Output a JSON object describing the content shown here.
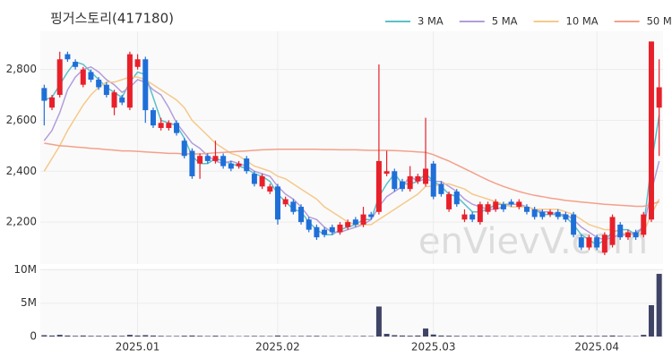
{
  "chart_data": {
    "type": "candlestick",
    "title": "핑거스토리(417180)",
    "watermark": "enVievV.com",
    "up_color": "#e8202a",
    "down_color": "#1f6fd8",
    "grid": true,
    "categories": [
      null,
      null,
      null,
      null,
      null,
      null,
      null,
      null,
      null,
      null,
      null,
      null,
      "2025.01",
      null,
      null,
      null,
      null,
      null,
      null,
      null,
      null,
      null,
      null,
      null,
      null,
      null,
      null,
      null,
      null,
      null,
      "2025.02",
      null,
      null,
      null,
      null,
      null,
      null,
      null,
      null,
      null,
      null,
      null,
      null,
      null,
      null,
      null,
      null,
      null,
      null,
      null,
      "2025.03",
      null,
      null,
      null,
      null,
      null,
      null,
      null,
      null,
      null,
      null,
      null,
      null,
      null,
      null,
      null,
      null,
      null,
      null,
      null,
      null,
      "2025.04",
      null,
      null,
      null,
      null,
      null,
      null,
      null,
      null
    ],
    "open": [
      2727,
      2650,
      2700,
      2860,
      2830,
      2740,
      2790,
      2760,
      2740,
      2650,
      2690,
      2650,
      2810,
      2840,
      2640,
      2570,
      2570,
      2590,
      2520,
      2480,
      2430,
      2460,
      2440,
      2460,
      2430,
      2420,
      2450,
      2390,
      2340,
      2320,
      2340,
      2270,
      2280,
      2260,
      2210,
      2180,
      2170,
      2180,
      2160,
      2180,
      2210,
      2190,
      2230,
      2240,
      2390,
      2400,
      2360,
      2330,
      2360,
      2350,
      2430,
      2350,
      2250,
      2320,
      2210,
      2230,
      2200,
      2240,
      2250,
      2270,
      2280,
      2260,
      2260,
      2250,
      2240,
      2230,
      2240,
      2230,
      2230,
      2140,
      2100,
      2140,
      2080,
      2110,
      2190,
      2140,
      2160,
      2150,
      2210,
      2650
    ],
    "high": [
      2740,
      2700,
      2870,
      2870,
      2840,
      2810,
      2800,
      2770,
      2750,
      2720,
      2700,
      2870,
      2860,
      2850,
      2650,
      2610,
      2600,
      2600,
      2530,
      2490,
      2470,
      2470,
      2520,
      2470,
      2440,
      2440,
      2460,
      2400,
      2390,
      2350,
      2350,
      2300,
      2290,
      2270,
      2220,
      2190,
      2180,
      2190,
      2200,
      2210,
      2220,
      2260,
      2240,
      2820,
      2480,
      2410,
      2370,
      2420,
      2390,
      2610,
      2440,
      2360,
      2320,
      2330,
      2250,
      2240,
      2280,
      2280,
      2290,
      2280,
      2290,
      2290,
      2270,
      2260,
      2250,
      2250,
      2250,
      2240,
      2240,
      2150,
      2150,
      2150,
      2160,
      2230,
      2200,
      2170,
      2170,
      2240,
      2910,
      2840
    ],
    "low": [
      2580,
      2640,
      2690,
      2830,
      2800,
      2730,
      2750,
      2720,
      2690,
      2620,
      2660,
      2640,
      2800,
      2590,
      2570,
      2560,
      2560,
      2540,
      2450,
      2370,
      2370,
      2430,
      2430,
      2410,
      2400,
      2410,
      2390,
      2340,
      2330,
      2310,
      2190,
      2260,
      2230,
      2190,
      2160,
      2130,
      2140,
      2150,
      2150,
      2170,
      2180,
      2180,
      2210,
      2230,
      2380,
      2320,
      2320,
      2320,
      2350,
      2340,
      2290,
      2300,
      2240,
      2260,
      2200,
      2200,
      2190,
      2230,
      2240,
      2240,
      2260,
      2250,
      2230,
      2210,
      2210,
      2220,
      2210,
      2200,
      2140,
      2090,
      2090,
      2090,
      2070,
      2100,
      2130,
      2130,
      2130,
      2140,
      2200,
      2460
    ],
    "close": [
      2677,
      2690,
      2840,
      2840,
      2810,
      2800,
      2760,
      2730,
      2700,
      2710,
      2670,
      2860,
      2840,
      2640,
      2580,
      2590,
      2590,
      2550,
      2460,
      2380,
      2460,
      2440,
      2460,
      2420,
      2410,
      2430,
      2400,
      2350,
      2380,
      2340,
      2210,
      2290,
      2240,
      2200,
      2170,
      2140,
      2150,
      2160,
      2190,
      2200,
      2190,
      2230,
      2220,
      2440,
      2400,
      2330,
      2330,
      2380,
      2380,
      2410,
      2300,
      2310,
      2310,
      2270,
      2230,
      2210,
      2270,
      2270,
      2280,
      2250,
      2270,
      2280,
      2240,
      2220,
      2220,
      2240,
      2220,
      2210,
      2150,
      2100,
      2140,
      2100,
      2150,
      2220,
      2140,
      2160,
      2140,
      2230,
      2910,
      2730
    ],
    "ylim": [
      2035,
      2950
    ],
    "yticks": [
      {
        "value": 2200,
        "label": "2,200"
      },
      {
        "value": 2400,
        "label": "2,400"
      },
      {
        "value": 2600,
        "label": "2,600"
      },
      {
        "value": 2800,
        "label": "2,800"
      }
    ],
    "series": [
      {
        "name": "3 MA",
        "color": "#5bc0c8",
        "values": [
          2680,
          2690,
          2740,
          2790,
          2830,
          2820,
          2790,
          2760,
          2730,
          2710,
          2690,
          2750,
          2790,
          2780,
          2690,
          2600,
          2590,
          2580,
          2530,
          2460,
          2430,
          2430,
          2450,
          2440,
          2430,
          2420,
          2410,
          2390,
          2380,
          2360,
          2310,
          2280,
          2250,
          2240,
          2200,
          2170,
          2150,
          2150,
          2170,
          2180,
          2190,
          2210,
          2210,
          2300,
          2350,
          2390,
          2350,
          2350,
          2360,
          2390,
          2360,
          2340,
          2310,
          2300,
          2270,
          2240,
          2240,
          2250,
          2270,
          2270,
          2270,
          2270,
          2260,
          2250,
          2230,
          2230,
          2230,
          2220,
          2190,
          2150,
          2130,
          2110,
          2130,
          2160,
          2170,
          2170,
          2150,
          2180,
          2430,
          2620
        ]
      },
      {
        "name": "5 MA",
        "color": "#b39ddb",
        "values": [
          2520,
          2560,
          2630,
          2720,
          2770,
          2800,
          2810,
          2790,
          2760,
          2740,
          2710,
          2730,
          2760,
          2750,
          2720,
          2700,
          2650,
          2590,
          2550,
          2510,
          2490,
          2460,
          2440,
          2430,
          2440,
          2430,
          2420,
          2400,
          2390,
          2380,
          2340,
          2310,
          2290,
          2260,
          2220,
          2210,
          2180,
          2160,
          2160,
          2170,
          2180,
          2190,
          2210,
          2260,
          2300,
          2320,
          2340,
          2380,
          2360,
          2370,
          2360,
          2360,
          2340,
          2320,
          2290,
          2270,
          2260,
          2250,
          2250,
          2260,
          2270,
          2270,
          2260,
          2250,
          2240,
          2240,
          2230,
          2230,
          2210,
          2180,
          2160,
          2140,
          2130,
          2140,
          2150,
          2150,
          2160,
          2180,
          2320,
          2440
        ]
      },
      {
        "name": "10 MA",
        "color": "#f5c98a",
        "values": [
          2400,
          2450,
          2500,
          2560,
          2610,
          2660,
          2700,
          2730,
          2750,
          2750,
          2760,
          2770,
          2770,
          2760,
          2740,
          2720,
          2700,
          2680,
          2650,
          2600,
          2570,
          2540,
          2510,
          2490,
          2470,
          2460,
          2440,
          2420,
          2410,
          2400,
          2380,
          2370,
          2350,
          2330,
          2310,
          2290,
          2260,
          2240,
          2220,
          2200,
          2190,
          2190,
          2190,
          2210,
          2230,
          2250,
          2270,
          2290,
          2310,
          2340,
          2340,
          2350,
          2350,
          2340,
          2330,
          2310,
          2300,
          2290,
          2280,
          2270,
          2260,
          2260,
          2260,
          2250,
          2250,
          2250,
          2250,
          2240,
          2230,
          2210,
          2190,
          2180,
          2170,
          2170,
          2160,
          2150,
          2150,
          2160,
          2230,
          2290
        ]
      },
      {
        "name": "50 MA",
        "color": "#f4a08a",
        "values": [
          2510,
          2505,
          2500,
          2498,
          2495,
          2493,
          2490,
          2488,
          2485,
          2483,
          2480,
          2480,
          2478,
          2476,
          2474,
          2472,
          2470,
          2470,
          2468,
          2468,
          2468,
          2470,
          2472,
          2474,
          2476,
          2478,
          2480,
          2482,
          2484,
          2485,
          2486,
          2486,
          2486,
          2486,
          2486,
          2486,
          2485,
          2485,
          2484,
          2484,
          2484,
          2483,
          2482,
          2482,
          2482,
          2481,
          2480,
          2478,
          2476,
          2474,
          2465,
          2452,
          2440,
          2425,
          2410,
          2395,
          2380,
          2365,
          2352,
          2340,
          2330,
          2320,
          2312,
          2305,
          2300,
          2294,
          2290,
          2285,
          2282,
          2279,
          2276,
          2273,
          2270,
          2268,
          2266,
          2264,
          2262,
          2262,
          2270,
          2280
        ]
      }
    ],
    "volume": {
      "color": "#3f4466",
      "ylim": [
        0,
        10200000
      ],
      "yticks": [
        0,
        {
          "value": 5000000,
          "label": "5M"
        },
        {
          "value": 10000000,
          "label": "10M"
        }
      ],
      "values": [
        200000,
        150000,
        250000,
        150000,
        100000,
        150000,
        100000,
        100000,
        100000,
        120000,
        100000,
        250000,
        150000,
        200000,
        150000,
        100000,
        80000,
        80000,
        120000,
        150000,
        100000,
        80000,
        120000,
        80000,
        70000,
        60000,
        80000,
        90000,
        80000,
        70000,
        150000,
        80000,
        70000,
        80000,
        90000,
        100000,
        70000,
        60000,
        60000,
        70000,
        60000,
        90000,
        70000,
        4500000,
        400000,
        200000,
        150000,
        120000,
        150000,
        1200000,
        300000,
        150000,
        120000,
        100000,
        90000,
        80000,
        100000,
        80000,
        70000,
        60000,
        70000,
        60000,
        60000,
        60000,
        70000,
        60000,
        60000,
        60000,
        90000,
        120000,
        100000,
        90000,
        110000,
        150000,
        90000,
        70000,
        60000,
        250000,
        4700000,
        9400000
      ]
    }
  }
}
